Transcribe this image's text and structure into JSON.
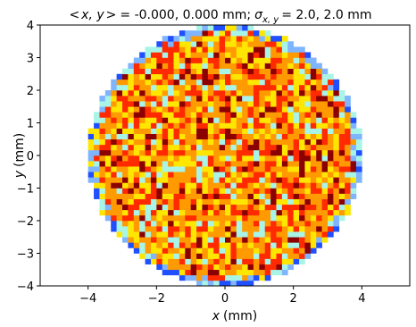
{
  "chart_data": {
    "type": "heatmap",
    "title": "< x, y > = -0.000, 0.000 mm; σ x,y = 2.0, 2.0 mm",
    "title_parts": {
      "lhs_open": "<",
      "lhs_var": "x, y",
      "lhs_close": ">",
      "mean": "= -0.000, 0.000 mm;",
      "sigma": "σ",
      "sigma_sub": "x, y",
      "sigma_values": "= 2.0, 2.0 mm"
    },
    "xlabel_var": "x",
    "xlabel_unit": "(mm)",
    "ylabel_var": "y",
    "ylabel_unit": "(mm)",
    "xlim": [
      -5.4,
      5.4
    ],
    "ylim": [
      -4,
      4
    ],
    "xticks": [
      -4,
      -2,
      0,
      2,
      4
    ],
    "yticks": [
      -4,
      -3,
      -2,
      -1,
      0,
      1,
      2,
      3,
      4
    ],
    "xtick_labels": [
      "−4",
      "−2",
      "0",
      "2",
      "4"
    ],
    "ytick_labels": [
      "−4",
      "−3",
      "−2",
      "−1",
      "0",
      "1",
      "2",
      "3",
      "4"
    ],
    "disk_radius": 4.0,
    "bins": 48,
    "bin_range": [
      -4,
      4
    ],
    "colormap": "jet",
    "grid": false,
    "colors": {
      "edge_blue": "#1f4fff",
      "light_blue": "#7fb4ff",
      "cyan": "#a8f5e8",
      "yellow": "#ffe600",
      "orange": "#ff9a00",
      "red": "#ff2a00",
      "dark_red": "#8b0000"
    }
  }
}
